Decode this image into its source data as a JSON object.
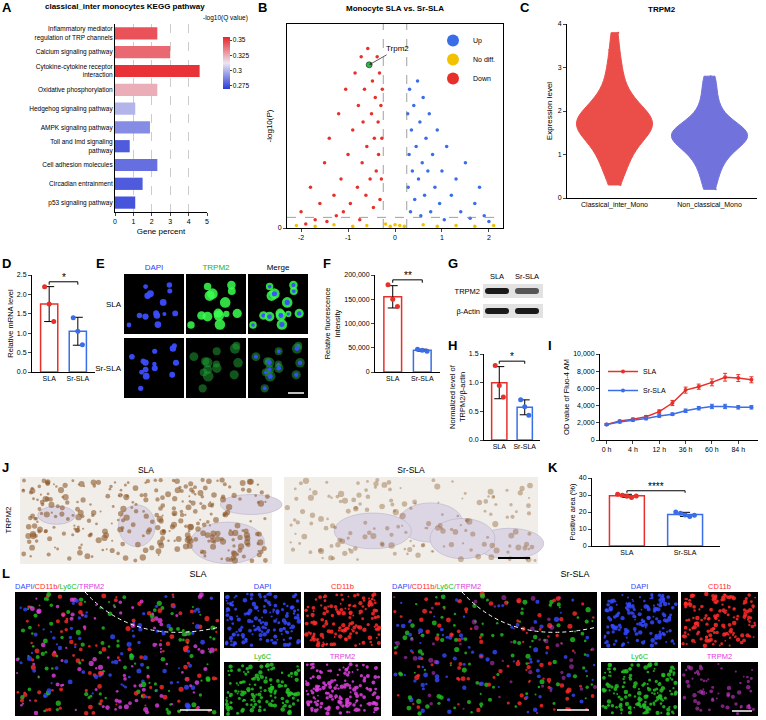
{
  "chart_data": [
    {
      "panel": "A",
      "type": "bar",
      "orientation": "horizontal",
      "title": "classical_inter monocytes KEGG pathway",
      "x_label": "Gene percent",
      "categories": [
        "Inflammatory mediator regulation of TRP channels",
        "Calcium signaling pathway",
        "Cytokine-cytokine receptor interaction",
        "Oxidative phosphorylation",
        "Hedgehog signaling pathway",
        "AMPK signaling pathway",
        "Toll and Imd signaling pathway",
        "Cell adhesion molecules",
        "Circadian entrainment",
        "p53 signaling pathway"
      ],
      "values": [
        2.3,
        3.0,
        4.6,
        2.3,
        1.1,
        1.9,
        0.8,
        2.3,
        1.5,
        1.1
      ],
      "color_values": [
        0.345,
        0.34,
        0.352,
        0.325,
        0.3,
        0.29,
        0.278,
        0.283,
        0.278,
        0.276
      ],
      "colorbar": {
        "title": "-log10(Q value)",
        "range": [
          0.27,
          0.355
        ],
        "ticks": [
          0.275,
          0.3,
          0.325,
          0.35
        ],
        "colors": [
          "#2b3bd8",
          "#ece6f2",
          "#e8242a"
        ]
      },
      "xlim": [
        0,
        5
      ],
      "xticks": [
        0,
        1,
        2,
        3,
        4,
        5
      ],
      "grid": true
    },
    {
      "panel": "B",
      "type": "scatter",
      "title": "Monocyte SLA vs. Sr-SLA",
      "y_label": "-log10(P)",
      "xlim": [
        -2.3,
        2.3
      ],
      "xticks": [
        -2,
        -1,
        0,
        1,
        2
      ],
      "ylim": [
        0,
        25
      ],
      "yticks": [
        0
      ],
      "legend": "upper right",
      "grid": false,
      "series": [
        {
          "name": "Up",
          "color": "#3a6ee8",
          "x": [
            0.27,
            0.28,
            0.3,
            0.31,
            0.33,
            0.35,
            0.37,
            0.4,
            0.42,
            0.45,
            0.48,
            0.5,
            0.53,
            0.55,
            0.58,
            0.6,
            0.63,
            0.66,
            0.7,
            0.73,
            0.76,
            0.8,
            0.85,
            0.9,
            0.95,
            1.0,
            1.05,
            1.1,
            1.2,
            1.3,
            1.4,
            1.5,
            1.6,
            1.7,
            1.8,
            1.9,
            2.0
          ],
          "y": [
            14,
            5,
            9,
            17,
            2,
            12,
            7,
            15,
            3.5,
            10,
            18,
            6,
            13,
            1.5,
            8,
            16,
            4,
            11,
            7,
            14,
            2,
            9,
            5,
            12,
            3,
            7,
            1,
            10,
            4,
            6,
            2,
            8,
            1.2,
            3,
            5,
            1.5,
            0.8
          ]
        },
        {
          "name": "No diff.",
          "color": "#f2c200",
          "x": [
            -2.1,
            -1.7,
            -1.3,
            -0.9,
            -0.6,
            -0.2,
            -0.1,
            0,
            0.1,
            0.2,
            0.6,
            0.9,
            1.3,
            1.7,
            2.1
          ],
          "y": [
            0.3,
            0.2,
            0.4,
            0.2,
            0.3,
            0.5,
            0.2,
            0.4,
            0.3,
            0.2,
            0.4,
            0.2,
            0.3,
            0.2,
            0.3
          ]
        },
        {
          "name": "Down",
          "color": "#e8302a",
          "x": [
            -2.0,
            -1.9,
            -1.8,
            -1.7,
            -1.6,
            -1.5,
            -1.45,
            -1.4,
            -1.3,
            -1.25,
            -1.2,
            -1.15,
            -1.1,
            -1.05,
            -1.0,
            -0.95,
            -0.9,
            -0.85,
            -0.8,
            -0.78,
            -0.75,
            -0.72,
            -0.7,
            -0.68,
            -0.65,
            -0.62,
            -0.6,
            -0.58,
            -0.53,
            -0.5,
            -0.48,
            -0.46,
            -0.44,
            -0.42,
            -0.4,
            -0.38,
            -0.36,
            -0.35,
            -0.33,
            -0.32,
            -0.3,
            -0.29,
            -0.28,
            -0.27
          ],
          "y": [
            2,
            0.5,
            5,
            1,
            3,
            8,
            0.8,
            11,
            4,
            1.5,
            14,
            6,
            2,
            17,
            9,
            3,
            12,
            19,
            5,
            15,
            1,
            21,
            8,
            13,
            17,
            4,
            10,
            22,
            6,
            14,
            18,
            2.5,
            11,
            16,
            7,
            21,
            13,
            9,
            19,
            3.5,
            15,
            6,
            11,
            17
          ]
        }
      ],
      "reference_lines": {
        "x": [
          -0.25,
          0.25
        ],
        "y": [
          1.3
        ]
      },
      "annotations": [
        {
          "text": "Trpm2",
          "x": -0.55,
          "y": 20,
          "color": "#2fb84a"
        }
      ]
    },
    {
      "panel": "C",
      "type": "violin",
      "title": "TRPM2",
      "y_label": "Expression level",
      "categories": [
        "Classical_inter_Mono",
        "Non_classical_Mono"
      ],
      "colors": [
        "#e8302a",
        "#5a5ad6"
      ],
      "values": [
        [
          0.3,
          0.5,
          0.7,
          0.8,
          0.9,
          1.0,
          1.1,
          1.2,
          1.3,
          1.35,
          1.4,
          1.45,
          1.5,
          1.55,
          1.6,
          1.62,
          1.65,
          1.7,
          1.72,
          1.75,
          1.8,
          1.82,
          1.85,
          1.9,
          1.95,
          2.0,
          2.05,
          2.1,
          2.2,
          2.3,
          2.4,
          2.5,
          2.7,
          2.9,
          3.1,
          3.4,
          3.8
        ],
        [
          0.2,
          0.5,
          0.7,
          0.9,
          1.0,
          1.1,
          1.2,
          1.3,
          1.35,
          1.4,
          1.42,
          1.45,
          1.48,
          1.5,
          1.55,
          1.6,
          1.7,
          1.8,
          2.0,
          2.2,
          2.5,
          2.8
        ]
      ],
      "ylim": [
        0,
        4
      ],
      "yticks": [
        0,
        1,
        2,
        3,
        4
      ],
      "grid": false
    },
    {
      "panel": "D",
      "type": "bar",
      "y_label": "Relative mRNA level",
      "categories": [
        "SLA",
        "Sr-SLA"
      ],
      "values": [
        1.75,
        1.05
      ],
      "errors": [
        0.45,
        0.36
      ],
      "points": [
        [
          2.2,
          1.75,
          1.3
        ],
        [
          1.4,
          1.05,
          0.7
        ]
      ],
      "colors": [
        "#e8302a",
        "#3a6ee8"
      ],
      "ylim": [
        0,
        2.5
      ],
      "yticks": [
        {
          "value": 0,
          "label": "0.0"
        },
        {
          "value": 0.5,
          "label": "0.5"
        },
        {
          "value": 1,
          "label": "1.0"
        },
        {
          "value": 1.5,
          "label": "1.5"
        },
        {
          "value": 2,
          "label": "2.0"
        },
        {
          "value": 2.5,
          "label": "2.5"
        }
      ],
      "significance": "*",
      "grid": false
    },
    {
      "panel": "F",
      "type": "bar",
      "y_label": "Relative fluorescence intensity",
      "categories": [
        "SLA",
        "Sr-SLA"
      ],
      "values": [
        155000,
        45000
      ],
      "errors": [
        23000,
        2000
      ],
      "points": [
        [
          180000,
          150000,
          135000
        ],
        [
          47000,
          45000,
          43000
        ]
      ],
      "colors": [
        "#e8302a",
        "#3a6ee8"
      ],
      "ylim": [
        0,
        200000
      ],
      "yticks": [
        0,
        {
          "value": 50000,
          "label": "50,000"
        },
        {
          "value": 100000,
          "label": "100,000"
        },
        {
          "value": 150000,
          "label": "150,000"
        },
        {
          "value": 200000,
          "label": "200,000"
        }
      ],
      "significance": "**",
      "grid": false
    },
    {
      "panel": "H",
      "type": "bar",
      "y_label": "Normalized level of TRPM2/β-actin",
      "categories": [
        "SLA",
        "Sr-SLA"
      ],
      "values": [
        1.0,
        0.57
      ],
      "errors": [
        0.28,
        0.13
      ],
      "points": [
        [
          1.3,
          0.95,
          0.75
        ],
        [
          0.7,
          0.58,
          0.43
        ]
      ],
      "colors": [
        "#e8302a",
        "#3a6ee8"
      ],
      "ylim": [
        0,
        1.5
      ],
      "yticks": [
        {
          "value": 0,
          "label": "0.0"
        },
        {
          "value": 0.5,
          "label": "0.5"
        },
        {
          "value": 1,
          "label": "1.0"
        },
        {
          "value": 1.5,
          "label": "1.5"
        }
      ],
      "significance": "*",
      "grid": false
    },
    {
      "panel": "I",
      "type": "line",
      "y_label": "OD value of Fluo-4 AM",
      "categories": [
        "0 h",
        null,
        "4 h",
        null,
        "12 h",
        null,
        "36 h",
        null,
        "60 h",
        null,
        "84 h",
        null
      ],
      "series": [
        {
          "name": "SLA",
          "color": "#e8302a",
          "values": [
            1800,
            2200,
            2400,
            2700,
            3300,
            4300,
            5800,
            6200,
            6700,
            7300,
            7200,
            7000
          ],
          "errors": [
            100,
            100,
            150,
            150,
            200,
            300,
            350,
            300,
            400,
            450,
            400,
            350
          ]
        },
        {
          "name": "Sr-SLA",
          "color": "#3a6ee8",
          "values": [
            1800,
            2100,
            2300,
            2500,
            2800,
            3000,
            3400,
            3700,
            3900,
            3900,
            3800,
            3800
          ],
          "errors": [
            100,
            100,
            100,
            150,
            150,
            150,
            200,
            200,
            250,
            250,
            200,
            200
          ]
        }
      ],
      "ylim": [
        0,
        10000
      ],
      "yticks": [
        0,
        {
          "value": 2000,
          "label": "2,000"
        },
        {
          "value": 4000,
          "label": "4,000"
        },
        {
          "value": 6000,
          "label": "6,000"
        },
        {
          "value": 8000,
          "label": "8,000"
        },
        {
          "value": 10000,
          "label": "10,000"
        }
      ],
      "legend": "upper left",
      "marker": "circle",
      "grid": false
    },
    {
      "panel": "K",
      "type": "bar",
      "y_label": "Positive area (%)",
      "categories": [
        "SLA",
        "Sr-SLA"
      ],
      "values": [
        29.5,
        18.6
      ],
      "errors": [
        0.9,
        1.2
      ],
      "points": [
        [
          30.5,
          29.8,
          29.2,
          28.6,
          29.4
        ],
        [
          20.0,
          19.2,
          18.3,
          17.4,
          18.1
        ]
      ],
      "colors": [
        "#e8302a",
        "#3a6ee8"
      ],
      "ylim": [
        0,
        40
      ],
      "yticks": [
        0,
        10,
        20,
        30,
        40
      ],
      "significance": "****",
      "grid": false
    }
  ],
  "images": [
    {
      "panel": "E",
      "columns": [
        {
          "text": "DAPI",
          "color": "#2b3cff"
        },
        {
          "text": "TRPM2",
          "color": "#22b022"
        },
        {
          "text": "Merge",
          "color": "#000000"
        }
      ],
      "rows": [
        "SLA",
        "Sr-SLA"
      ]
    },
    {
      "panel": "G",
      "columns": [
        "SLA",
        "Sr-SLA"
      ],
      "rows": [
        "TRPM2",
        "β-Actin"
      ]
    },
    {
      "panel": "J",
      "row_label": "TRPM2",
      "columns": [
        "SLA",
        "Sr-SLA"
      ]
    },
    {
      "panel": "L",
      "groups": [
        "SLA",
        "Sr-SLA"
      ],
      "merge_label": [
        {
          "text": "DAPI/",
          "color": "#3448ff"
        },
        {
          "text": "CD11b/",
          "color": "#ff2a2a"
        },
        {
          "text": "Ly6C/",
          "color": "#22c022"
        },
        {
          "text": "TRPM2",
          "color": "#e040e0"
        }
      ],
      "channels": [
        {
          "text": "DAPI",
          "color": "#3448ff"
        },
        {
          "text": "CD11b",
          "color": "#ff2a2a"
        },
        {
          "text": "Ly6C",
          "color": "#22c022"
        },
        {
          "text": "TRPM2",
          "color": "#e040e0"
        }
      ]
    }
  ]
}
